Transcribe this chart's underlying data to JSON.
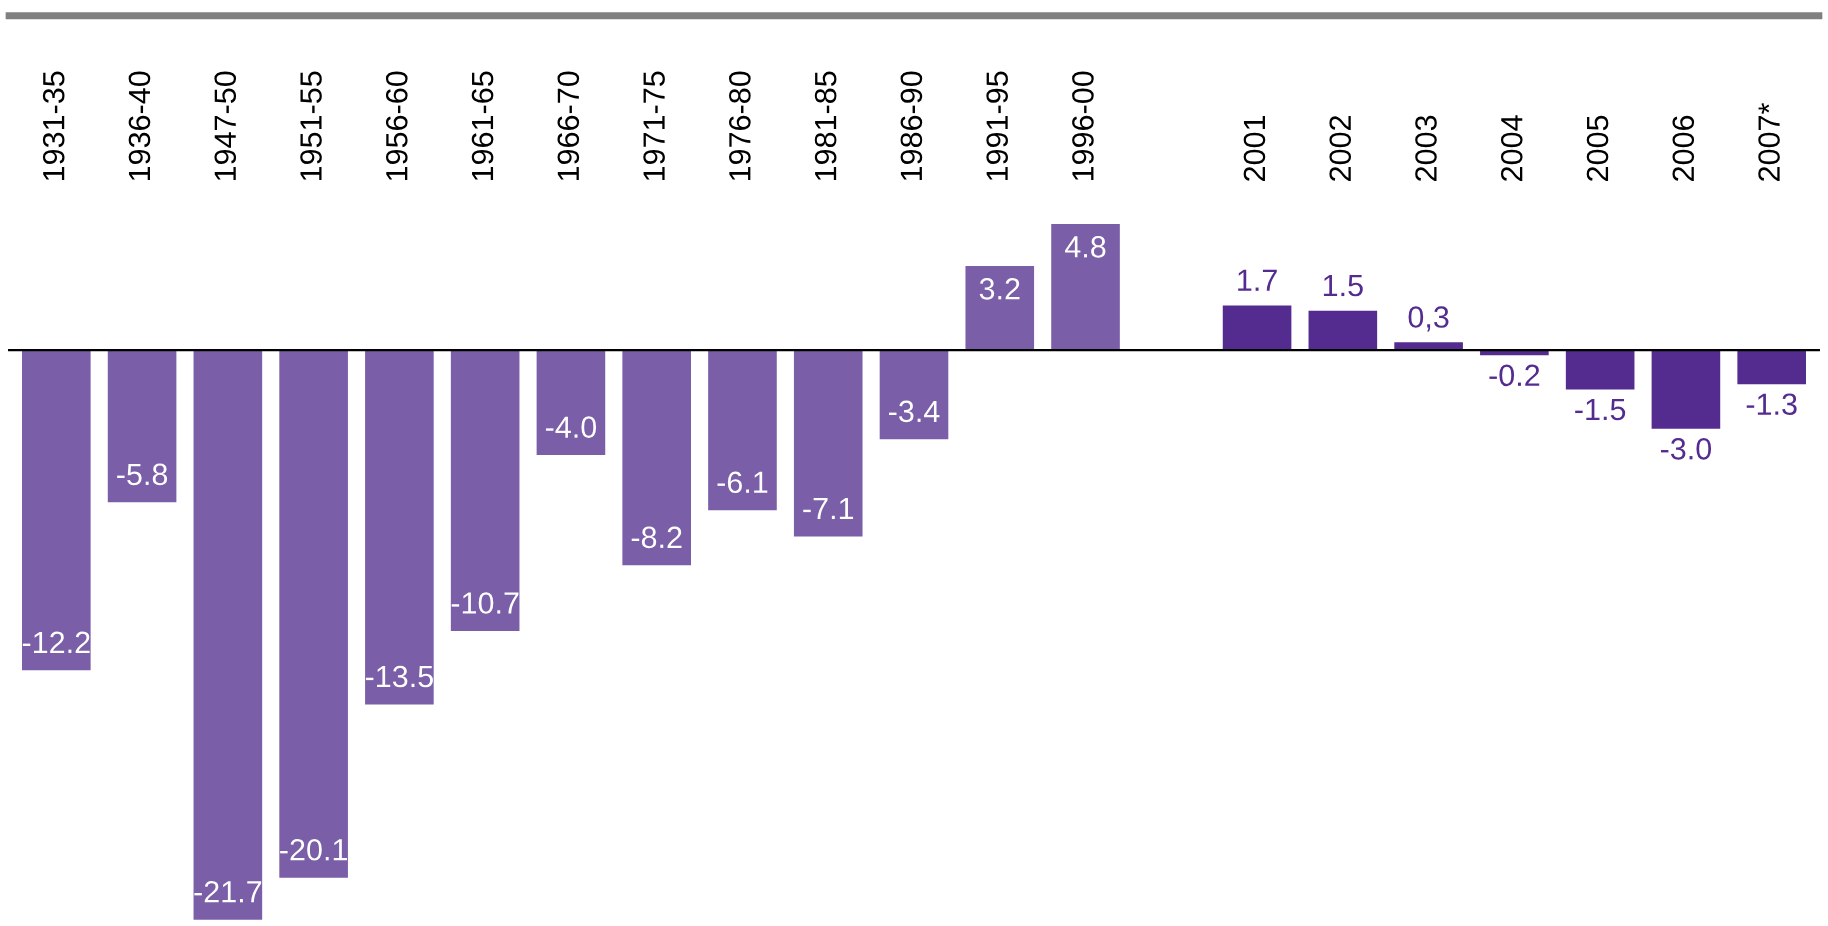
{
  "chart_data": {
    "type": "bar",
    "categories": [
      "1931-35",
      "1936-40",
      "1947-50",
      "1951-55",
      "1956-60",
      "1961-65",
      "1966-70",
      "1971-75",
      "1976-80",
      "1981-85",
      "1986-90",
      "1991-95",
      "1996-00",
      null,
      "2001",
      "2002",
      "2003",
      "2004",
      "2005",
      "2006",
      "2007*"
    ],
    "series": [
      {
        "color": "#7a5fa8",
        "values": [
          -12.2,
          -5.8,
          -21.7,
          -20.1,
          -13.5,
          -10.7,
          -4.0,
          -8.2,
          -6.1,
          -7.1,
          -3.4,
          3.2,
          4.8,
          null,
          null,
          null,
          null,
          null,
          null,
          null,
          null
        ],
        "value_labels": [
          "-12.2",
          "-5.8",
          "-21.7",
          "-20.1",
          "-13.5",
          "-10.7",
          "-4.0",
          "-8.2",
          "-6.1",
          "-7.1",
          "-3.4",
          "3.2",
          "4.8",
          null,
          null,
          null,
          null,
          null,
          null,
          null,
          null
        ]
      },
      {
        "color": "#542b8f",
        "values": [
          null,
          null,
          null,
          null,
          null,
          null,
          null,
          null,
          null,
          null,
          null,
          null,
          null,
          null,
          1.7,
          1.5,
          0.3,
          -0.2,
          -1.5,
          -3.0,
          -1.3
        ],
        "value_labels": [
          null,
          null,
          null,
          null,
          null,
          null,
          null,
          null,
          null,
          null,
          null,
          null,
          null,
          null,
          "1.7",
          "1.5",
          "0,3",
          "-0.2",
          "-1.5",
          "-3.0",
          "-1.3"
        ]
      }
    ],
    "grid": false,
    "legend": false,
    "tick_labels": "x"
  }
}
